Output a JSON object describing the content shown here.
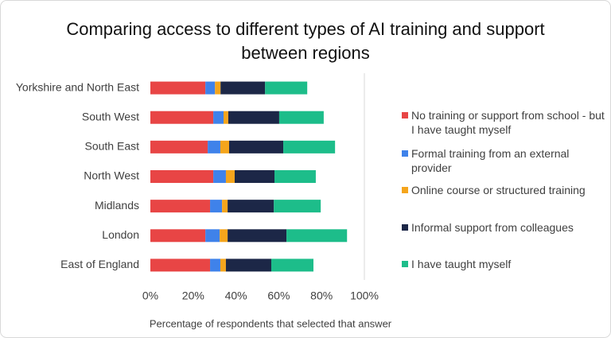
{
  "chart_data": {
    "type": "stacked_barh",
    "title": "Comparing access to different types of AI training and support between regions",
    "x_label": "Percentage of respondents that selected that answer",
    "categories": [
      "Yorkshire and North East",
      "South West",
      "South East",
      "North West",
      "Midlands",
      "London",
      "East of England"
    ],
    "series": [
      {
        "name": "No training or support from school - but I have taught myself",
        "color": "#e84545",
        "values": [
          25.7,
          29.4,
          26.8,
          29.4,
          27.9,
          25.7,
          27.9
        ]
      },
      {
        "name": "Formal training from an external provider",
        "color": "#3f82ea",
        "values": [
          4.5,
          4.8,
          5.9,
          5.9,
          5.6,
          6.7,
          4.8
        ]
      },
      {
        "name": "Online course or structured training",
        "color": "#f5a51c",
        "values": [
          2.6,
          2.2,
          4.1,
          4.1,
          2.6,
          3.7,
          2.6
        ]
      },
      {
        "name": "Informal support from colleagues",
        "color": "#1c2747",
        "values": [
          20.8,
          23.8,
          25.3,
          18.6,
          21.6,
          27.5,
          21.2
        ]
      },
      {
        "name": "I have taught myself",
        "color": "#1dbd8a",
        "values": [
          19.7,
          20.8,
          24.2,
          19.3,
          21.9,
          28.3,
          19.7
        ]
      }
    ],
    "xlim": [
      0,
      100
    ],
    "xticks": [
      {
        "value": 0,
        "label": "0%"
      },
      {
        "value": 20,
        "label": "20%"
      },
      {
        "value": 40,
        "label": "40%"
      },
      {
        "value": 60,
        "label": "60%"
      },
      {
        "value": 80,
        "label": "80%"
      },
      {
        "value": 100,
        "label": "100%"
      }
    ],
    "grid": false,
    "legend": "right"
  }
}
